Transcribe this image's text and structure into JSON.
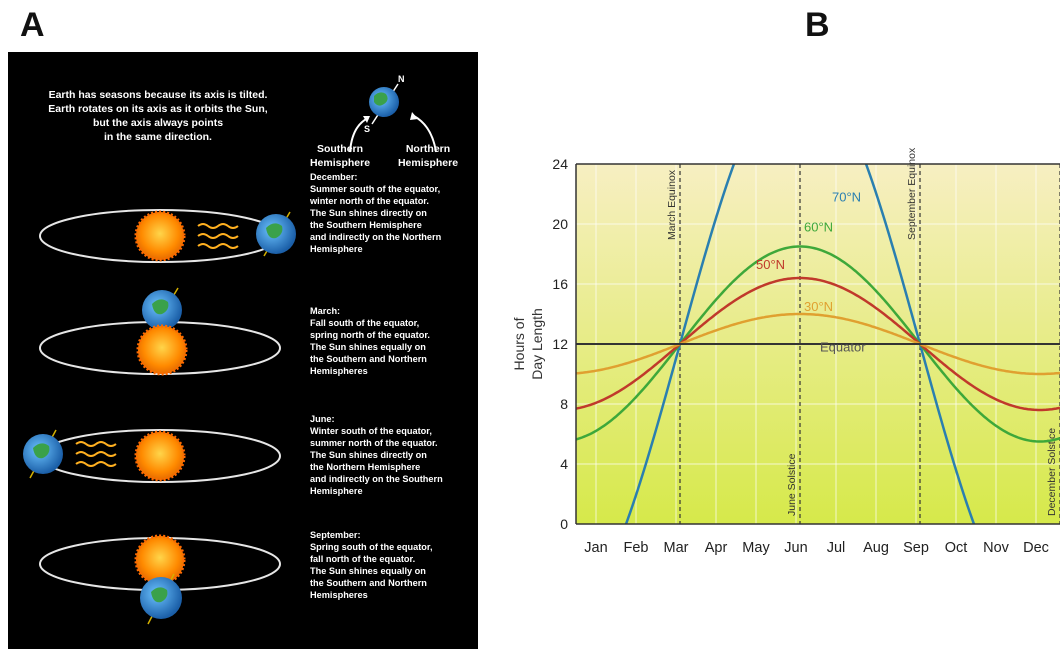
{
  "panels": {
    "a": {
      "letter": "A"
    },
    "b": {
      "letter": "B"
    }
  },
  "diagram": {
    "intro_lines": [
      "Earth has seasons because its axis is tilted.",
      "Earth rotates on its axis as it orbits the Sun,",
      "but the axis always points",
      "in the same direction."
    ],
    "axis_labels": {
      "north": "N",
      "south": "S"
    },
    "hemisphere_labels": {
      "southern": [
        "Southern",
        "Hemisphere"
      ],
      "northern": [
        "Northern",
        "Hemisphere"
      ]
    },
    "seasons": [
      {
        "lines": [
          "December:",
          "Summer south of the equator,",
          "winter north of the equator.",
          "The Sun shines directly on",
          "the Southern Hemisphere",
          "and indirectly on the Northern",
          "Hemisphere"
        ]
      },
      {
        "lines": [
          "March:",
          "Fall south of the equator,",
          "spring north of the equator.",
          "The Sun shines equally on",
          "the Southern and Northern",
          "Hemispheres"
        ]
      },
      {
        "lines": [
          "June:",
          "Winter south of the equator,",
          "summer north of the equator.",
          "The Sun shines directly on",
          "the Northern Hemisphere",
          "and indirectly on the Southern",
          "Hemisphere"
        ]
      },
      {
        "lines": [
          "September:",
          "Spring south of the equator,",
          "fall north of the equator.",
          "The Sun shines equally on",
          "the Southern and Northern",
          "Hemispheres"
        ]
      }
    ],
    "colors": {
      "background": "#000000",
      "sun": "#ff8a00",
      "earth": "#2a8fd6",
      "orbit": "#e6e6e6",
      "text": "#ffffff"
    }
  },
  "chart_data": {
    "type": "line",
    "ylabel": "Hours of Day Length",
    "ylim": [
      0,
      24
    ],
    "yticks": [
      0,
      4,
      8,
      12,
      16,
      20,
      24
    ],
    "x_month_labels": [
      "Jan",
      "Feb",
      "Mar",
      "Apr",
      "May",
      "Jun",
      "Jul",
      "Aug",
      "Sep",
      "Oct",
      "Nov",
      "Dec"
    ],
    "xlim_month": [
      0.5,
      12.6
    ],
    "events": [
      {
        "label": "March Equinox",
        "month": 3.1
      },
      {
        "label": "June Solstice",
        "month": 6.1
      },
      {
        "label": "September Equinox",
        "month": 9.1
      },
      {
        "label": "December Solstice",
        "month": 12.6
      }
    ],
    "series": [
      {
        "name": "70°N",
        "color": "#2a7fb0",
        "amplitude": 18.5
      },
      {
        "name": "60°N",
        "color": "#3ea83a",
        "amplitude": 6.5
      },
      {
        "name": "50°N",
        "color": "#c0392b",
        "amplitude": 4.4
      },
      {
        "name": "30°N",
        "color": "#e0a030",
        "amplitude": 2.0
      },
      {
        "name": "Equator",
        "color": "#333333",
        "amplitude": 0
      }
    ],
    "grid": true,
    "background_gradient": [
      "#f7efc2",
      "#d6e94a"
    ]
  }
}
